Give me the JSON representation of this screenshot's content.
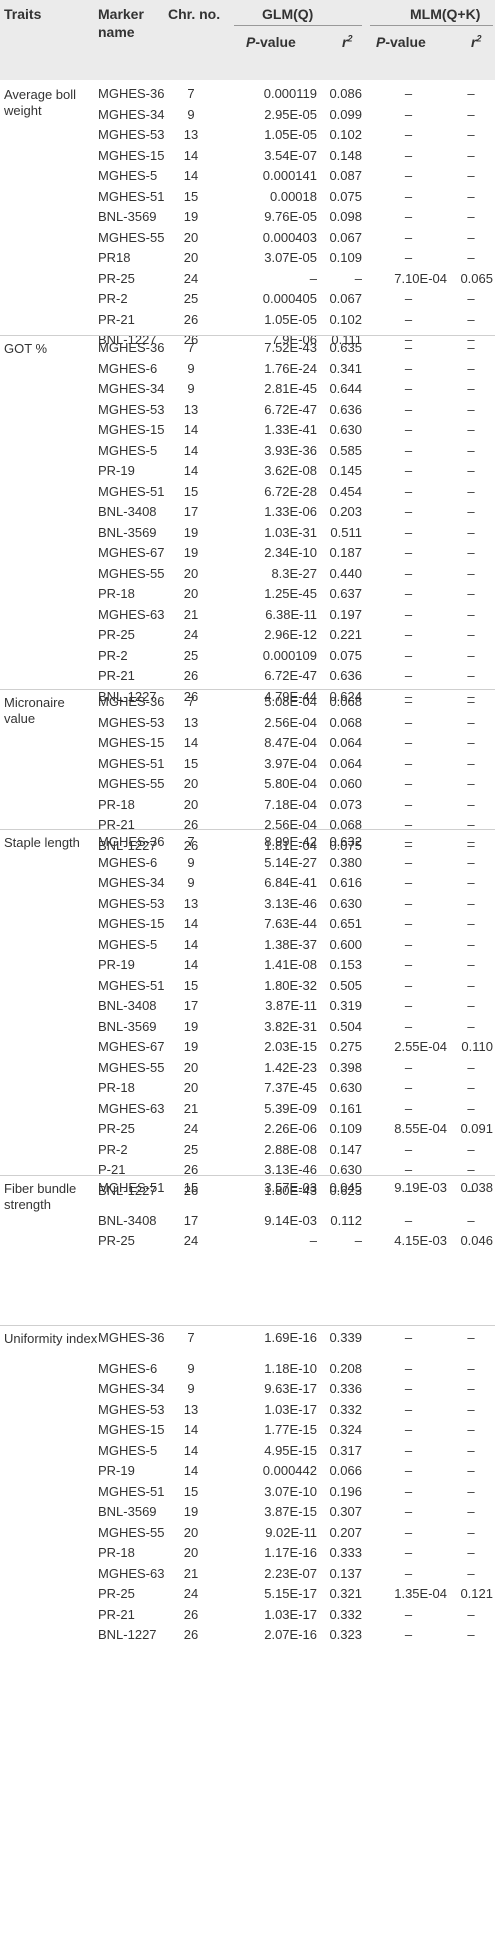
{
  "header": {
    "traits": "Traits",
    "marker_line1": "Marker",
    "marker_line2": "name",
    "chr": "Chr. no.",
    "glm": "GLM(Q)",
    "mlm": "MLM(Q+K)",
    "p_label": "P",
    "p_suffix": "-value",
    "r_base": "r",
    "r_exp": "2"
  },
  "groups": [
    {
      "trait": "Average boll weight",
      "rows": [
        [
          "MGHES-36",
          "7",
          "0.000119",
          "0.086",
          "–",
          "–"
        ],
        [
          "MGHES-34",
          "9",
          "2.95E-05",
          "0.099",
          "–",
          "–"
        ],
        [
          "MGHES-53",
          "13",
          "1.05E-05",
          "0.102",
          "–",
          "–"
        ],
        [
          "MGHES-15",
          "14",
          "3.54E-07",
          "0.148",
          "–",
          "–"
        ],
        [
          "MGHES-5",
          "14",
          "0.000141",
          "0.087",
          "–",
          "–"
        ],
        [
          "MGHES-51",
          "15",
          "0.00018",
          "0.075",
          "–",
          "–"
        ],
        [
          "BNL-3569",
          "19",
          "9.76E-05",
          "0.098",
          "–",
          "–"
        ],
        [
          "MGHES-55",
          "20",
          "0.000403",
          "0.067",
          "–",
          "–"
        ],
        [
          "PR18",
          "20",
          "3.07E-05",
          "0.109",
          "–",
          "–"
        ],
        [
          "PR-25",
          "24",
          "–",
          "–",
          "7.10E-04",
          "0.065"
        ],
        [
          "PR-2",
          "25",
          "0.000405",
          "0.067",
          "–",
          "–"
        ],
        [
          "PR-21",
          "26",
          "1.05E-05",
          "0.102",
          "–",
          "–"
        ],
        [
          "BNL-1227",
          "26",
          "7.9E-06",
          "0.111",
          "–",
          "–"
        ]
      ]
    },
    {
      "trait": "GOT %",
      "rows": [
        [
          "MGHES-36",
          "7",
          "7.52E-43",
          "0.635",
          "–",
          "–"
        ],
        [
          "MGHES-6",
          "9",
          "1.76E-24",
          "0.341",
          "–",
          "–"
        ],
        [
          "MGHES-34",
          "9",
          "2.81E-45",
          "0.644",
          "–",
          "–"
        ],
        [
          "MGHES-53",
          "13",
          "6.72E-47",
          "0.636",
          "–",
          "–"
        ],
        [
          "MGHES-15",
          "14",
          "1.33E-41",
          "0.630",
          "–",
          "–"
        ],
        [
          "MGHES-5",
          "14",
          "3.93E-36",
          "0.585",
          "–",
          "–"
        ],
        [
          "PR-19",
          "14",
          "3.62E-08",
          "0.145",
          "–",
          "–"
        ],
        [
          "MGHES-51",
          "15",
          "6.72E-28",
          "0.454",
          "–",
          "–"
        ],
        [
          "BNL-3408",
          "17",
          "1.33E-06",
          "0.203",
          "–",
          "–"
        ],
        [
          "BNL-3569",
          "19",
          "1.03E-31",
          "0.511",
          "–",
          "–"
        ],
        [
          "MGHES-67",
          "19",
          "2.34E-10",
          "0.187",
          "–",
          "–"
        ],
        [
          "MGHES-55",
          "20",
          "8.3E-27",
          "0.440",
          "–",
          "–"
        ],
        [
          "PR-18",
          "20",
          "1.25E-45",
          "0.637",
          "–",
          "–"
        ],
        [
          "MGHES-63",
          "21",
          "6.38E-11",
          "0.197",
          "–",
          "–"
        ],
        [
          "PR-25",
          "24",
          "2.96E-12",
          "0.221",
          "–",
          "–"
        ],
        [
          "PR-2",
          "25",
          "0.000109",
          "0.075",
          "–",
          "–"
        ],
        [
          "PR-21",
          "26",
          "6.72E-47",
          "0.636",
          "–",
          "–"
        ],
        [
          "BNL-1227",
          "26",
          "4.79E-44",
          "0.624",
          "–",
          "–"
        ]
      ]
    },
    {
      "trait": "Micronaire value",
      "rows": [
        [
          "MGHES-36",
          "7",
          "5.08E-04",
          "0.068",
          "–",
          "–"
        ],
        [
          "MGHES-53",
          "13",
          "2.56E-04",
          "0.068",
          "–",
          "–"
        ],
        [
          "MGHES-15",
          "14",
          "8.47E-04",
          "0.064",
          "–",
          "–"
        ],
        [
          "MGHES-51",
          "15",
          "3.97E-04",
          "0.064",
          "–",
          "–"
        ],
        [
          "MGHES-55",
          "20",
          "5.80E-04",
          "0.060",
          "–",
          "–"
        ],
        [
          "PR-18",
          "20",
          "7.18E-04",
          "0.073",
          "–",
          "–"
        ],
        [
          "PR-21",
          "26",
          "2.56E-04",
          "0.068",
          "–",
          "–"
        ],
        [
          "BNL-1227",
          "26",
          "1.81E-04",
          "0.075",
          "–",
          "–"
        ]
      ]
    },
    {
      "trait": "Staple length",
      "rows": [
        [
          "MGHES-36",
          "7",
          "8.99E-42",
          "0.632",
          "–",
          "–"
        ],
        [
          "MGHES-6",
          "9",
          "5.14E-27",
          "0.380",
          "–",
          "–"
        ],
        [
          "MGHES-34",
          "9",
          "6.84E-41",
          "0.616",
          "–",
          "–"
        ],
        [
          "MGHES-53",
          "13",
          "3.13E-46",
          "0.630",
          "–",
          "–"
        ],
        [
          "MGHES-15",
          "14",
          "7.63E-44",
          "0.651",
          "–",
          "–"
        ],
        [
          "MGHES-5",
          "14",
          "1.38E-37",
          "0.600",
          "–",
          "–"
        ],
        [
          "PR-19",
          "14",
          "1.41E-08",
          "0.153",
          "–",
          "–"
        ],
        [
          "MGHES-51",
          "15",
          "1.80E-32",
          "0.505",
          "–",
          "–"
        ],
        [
          "BNL-3408",
          "17",
          "3.87E-11",
          "0.319",
          "–",
          "–"
        ],
        [
          "BNL-3569",
          "19",
          "3.82E-31",
          "0.504",
          "–",
          "–"
        ],
        [
          "MGHES-67",
          "19",
          "2.03E-15",
          "0.275",
          "2.55E-04",
          "0.110"
        ],
        [
          "MGHES-55",
          "20",
          "1.42E-23",
          "0.398",
          "–",
          "–"
        ],
        [
          "PR-18",
          "20",
          "7.37E-45",
          "0.630",
          "–",
          "–"
        ],
        [
          "MGHES-63",
          "21",
          "5.39E-09",
          "0.161",
          "–",
          "–"
        ],
        [
          "PR-25",
          "24",
          "2.26E-06",
          "0.109",
          "8.55E-04",
          "0.091"
        ],
        [
          "PR-2",
          "25",
          "2.88E-08",
          "0.147",
          "–",
          "–"
        ],
        [
          "P-21",
          "26",
          "3.13E-46",
          "0.630",
          "–",
          "–"
        ],
        [
          "BNL-1227",
          "26",
          "1.80E-43",
          "0.623",
          "–",
          "–"
        ]
      ]
    },
    {
      "trait": "Fiber bundle strength",
      "rows": [
        [
          "MGHES-51",
          "15",
          "3.57E-03",
          "0.045",
          "9.19E-03",
          "0.038"
        ],
        [
          "BNL-3408",
          "17",
          "9.14E-03",
          "0.112",
          "–",
          "–"
        ],
        [
          "PR-25",
          "24",
          "–",
          "–",
          "4.15E-03",
          "0.046"
        ]
      ]
    },
    {
      "trait": "Uniformity index",
      "rows": [
        [
          "MGHES-36",
          "7",
          "1.69E-16",
          "0.339",
          "–",
          "–"
        ],
        [
          "MGHES-6",
          "9",
          "1.18E-10",
          "0.208",
          "–",
          "–"
        ],
        [
          "MGHES-34",
          "9",
          "9.63E-17",
          "0.336",
          "–",
          "–"
        ],
        [
          "MGHES-53",
          "13",
          "1.03E-17",
          "0.332",
          "–",
          "–"
        ],
        [
          "MGHES-15",
          "14",
          "1.77E-15",
          "0.324",
          "–",
          "–"
        ],
        [
          "MGHES-5",
          "14",
          "4.95E-15",
          "0.317",
          "–",
          "–"
        ],
        [
          "PR-19",
          "14",
          "0.000442",
          "0.066",
          "–",
          "–"
        ],
        [
          "MGHES-51",
          "15",
          "3.07E-10",
          "0.196",
          "–",
          "–"
        ],
        [
          "BNL-3569",
          "19",
          "3.87E-15",
          "0.307",
          "–",
          "–"
        ],
        [
          "MGHES-55",
          "20",
          "9.02E-11",
          "0.207",
          "–",
          "–"
        ],
        [
          "PR-18",
          "20",
          "1.17E-16",
          "0.333",
          "–",
          "–"
        ],
        [
          "MGHES-63",
          "21",
          "2.23E-07",
          "0.137",
          "–",
          "–"
        ],
        [
          "PR-25",
          "24",
          "5.15E-17",
          "0.321",
          "1.35E-04",
          "0.121"
        ],
        [
          "PR-21",
          "26",
          "1.03E-17",
          "0.332",
          "–",
          "–"
        ],
        [
          "BNL-1227",
          "26",
          "2.07E-16",
          "0.323",
          "–",
          "–"
        ]
      ]
    }
  ]
}
